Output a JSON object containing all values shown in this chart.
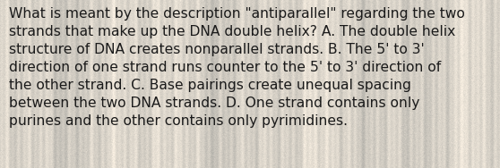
{
  "text": "What is meant by the description \"antiparallel\" regarding the two\nstrands that make up the DNA double helix? A. The double helix\nstructure of DNA creates nonparallel strands. B. The 5' to 3'\ndirection of one strand runs counter to the 5' to 3' direction of\nthe other strand. C. Base pairings create unequal spacing\nbetween the two DNA strands. D. One strand contains only\npurines and the other contains only pyrimidines.",
  "background_color_base": "#d8d2c6",
  "text_color": "#1a1a1a",
  "font_size": 11.2,
  "fig_width": 5.58,
  "fig_height": 1.88,
  "dpi": 100
}
